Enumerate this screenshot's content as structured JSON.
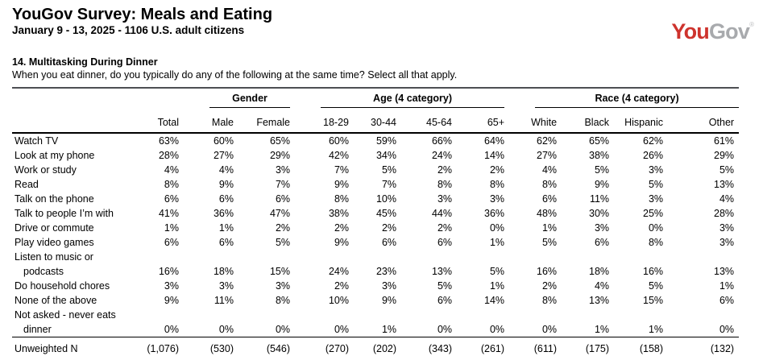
{
  "page": {
    "title": "YouGov Survey: Meals and Eating",
    "subtitle": "January 9 - 13, 2025 - 1106 U.S. adult citizens"
  },
  "logo": {
    "you": "You",
    "gov": "Gov",
    "registered": "®",
    "you_color": "#CE332D",
    "gov_color": "#A8AAAD"
  },
  "question": {
    "heading": "14. Multitasking During Dinner",
    "text": "When you eat dinner, do you typically do any of the following at the same time? Select all that apply."
  },
  "chart_data": {
    "type": "table",
    "title": "14. Multitasking During Dinner",
    "column_groups": [
      {
        "label": "",
        "columns": [
          "Total"
        ]
      },
      {
        "label": "Gender",
        "columns": [
          "Male",
          "Female"
        ]
      },
      {
        "label": "Age (4 category)",
        "columns": [
          "18-29",
          "30-44",
          "45-64",
          "65+"
        ]
      },
      {
        "label": "Race (4 category)",
        "columns": [
          "White",
          "Black",
          "Hispanic",
          "Other"
        ]
      }
    ],
    "rows": [
      {
        "label": "Watch TV",
        "values": [
          "63%",
          "60%",
          "65%",
          "60%",
          "59%",
          "66%",
          "64%",
          "62%",
          "65%",
          "62%",
          "61%"
        ]
      },
      {
        "label": "Look at my phone",
        "values": [
          "28%",
          "27%",
          "29%",
          "42%",
          "34%",
          "24%",
          "14%",
          "27%",
          "38%",
          "26%",
          "29%"
        ]
      },
      {
        "label": "Work or study",
        "values": [
          "4%",
          "4%",
          "3%",
          "7%",
          "5%",
          "2%",
          "2%",
          "4%",
          "5%",
          "3%",
          "5%"
        ]
      },
      {
        "label": "Read",
        "values": [
          "8%",
          "9%",
          "7%",
          "9%",
          "7%",
          "8%",
          "8%",
          "8%",
          "9%",
          "5%",
          "13%"
        ]
      },
      {
        "label": "Talk on the phone",
        "values": [
          "6%",
          "6%",
          "6%",
          "8%",
          "10%",
          "3%",
          "3%",
          "6%",
          "11%",
          "3%",
          "4%"
        ]
      },
      {
        "label": "Talk to people I’m with",
        "values": [
          "41%",
          "36%",
          "47%",
          "38%",
          "45%",
          "44%",
          "36%",
          "48%",
          "30%",
          "25%",
          "28%"
        ]
      },
      {
        "label": "Drive or commute",
        "values": [
          "1%",
          "1%",
          "2%",
          "2%",
          "2%",
          "2%",
          "0%",
          "1%",
          "3%",
          "0%",
          "3%"
        ]
      },
      {
        "label": "Play video games",
        "values": [
          "6%",
          "6%",
          "5%",
          "9%",
          "6%",
          "6%",
          "1%",
          "5%",
          "6%",
          "8%",
          "3%"
        ]
      },
      {
        "label": [
          "Listen to music or",
          "podcasts"
        ],
        "values": [
          "16%",
          "18%",
          "15%",
          "24%",
          "23%",
          "13%",
          "5%",
          "16%",
          "18%",
          "16%",
          "13%"
        ]
      },
      {
        "label": "Do household chores",
        "values": [
          "3%",
          "3%",
          "3%",
          "2%",
          "3%",
          "5%",
          "1%",
          "2%",
          "4%",
          "5%",
          "1%"
        ]
      },
      {
        "label": "None of the above",
        "values": [
          "9%",
          "11%",
          "8%",
          "10%",
          "9%",
          "6%",
          "14%",
          "8%",
          "13%",
          "15%",
          "6%"
        ]
      },
      {
        "label": [
          "Not asked - never eats",
          "dinner"
        ],
        "values": [
          "0%",
          "0%",
          "0%",
          "0%",
          "1%",
          "0%",
          "0%",
          "0%",
          "1%",
          "1%",
          "0%"
        ]
      },
      {
        "label": "Unweighted N",
        "footer": true,
        "values": [
          "(1,076)",
          "(530)",
          "(546)",
          "(270)",
          "(202)",
          "(343)",
          "(261)",
          "(611)",
          "(175)",
          "(158)",
          "(132)"
        ]
      }
    ]
  }
}
